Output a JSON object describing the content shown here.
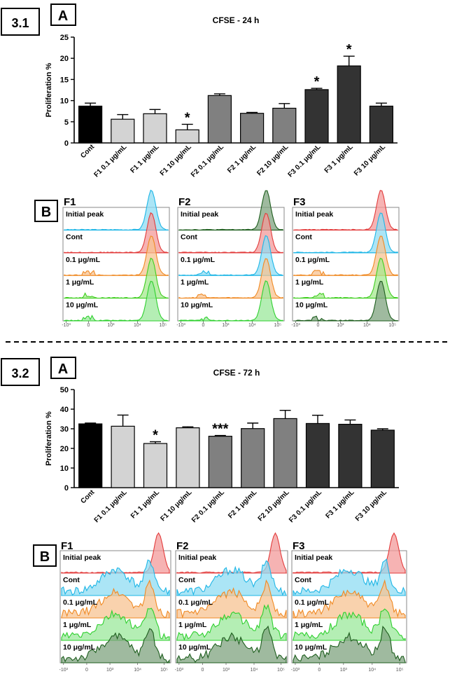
{
  "sections": [
    {
      "badge": "3.1",
      "label_a": "A",
      "label_b": "B"
    },
    {
      "badge": "3.2",
      "label_a": "A",
      "label_b": "B"
    }
  ],
  "colors": {
    "black": "#000000",
    "light": "#d3d3d3",
    "mid": "#808080",
    "dark": "#333333"
  },
  "chart_data": [
    {
      "type": "bar",
      "title": "CFSE - 24 h",
      "ylabel": "Proliferation %",
      "xlabel": "",
      "ylim": [
        0,
        25
      ],
      "yticks": [
        "0",
        "5",
        "10",
        "15",
        "20",
        "25"
      ],
      "categories": [
        "Cont",
        "F1 0.1 μg/mL",
        "F1 1 μg/mL",
        "F1 10 μg/mL",
        "F2 0.1 μg/mL",
        "F2 1 μg/mL",
        "F2 10 μg/mL",
        "F3 0.1 μg/mL",
        "F3 1 μg/mL",
        "F3 10 μg/mL"
      ],
      "values": [
        8.7,
        5.6,
        6.9,
        3.1,
        11.2,
        7.0,
        8.2,
        12.6,
        18.2,
        8.7
      ],
      "errors": [
        0.7,
        1.1,
        1.0,
        1.3,
        0.4,
        0.2,
        1.1,
        0.3,
        2.3,
        0.7
      ],
      "fills": [
        "black",
        "light",
        "light",
        "light",
        "mid",
        "mid",
        "mid",
        "dark",
        "dark",
        "dark"
      ],
      "annotations": [
        "",
        "",
        "",
        "*",
        "",
        "",
        "",
        "*",
        "*",
        ""
      ]
    },
    {
      "type": "bar",
      "title": "CFSE - 72 h",
      "ylabel": "Proliferation %",
      "xlabel": "",
      "ylim": [
        0,
        50
      ],
      "yticks": [
        "0",
        "10",
        "20",
        "30",
        "40",
        "50"
      ],
      "categories": [
        "Cont",
        "F1 0.1 μg/mL",
        "F1 1 μg/mL",
        "F1 10 μg/mL",
        "F2 0.1 μg/mL",
        "F2 1 μg/mL",
        "F2 10 μg/mL",
        "F3 0.1 μg/mL",
        "F3 1 μg/mL",
        "F3 10 μg/mL"
      ],
      "values": [
        32.5,
        31.3,
        22.5,
        30.5,
        26.2,
        30.1,
        35.2,
        32.7,
        32.3,
        29.3
      ],
      "errors": [
        0.4,
        5.7,
        0.9,
        0.5,
        0.4,
        2.8,
        4.2,
        4.2,
        2.2,
        0.7
      ],
      "fills": [
        "black",
        "light",
        "light",
        "light",
        "mid",
        "mid",
        "mid",
        "dark",
        "dark",
        "dark"
      ],
      "annotations": [
        "",
        "",
        "*",
        "",
        "***",
        "",
        "",
        "",
        "",
        ""
      ]
    }
  ],
  "histograms": {
    "section1": {
      "panels": [
        {
          "title": "F1",
          "order": [
            "cyan",
            "red",
            "orange",
            "yellowgreen",
            "green"
          ]
        },
        {
          "title": "F2",
          "order": [
            "darkgreen",
            "red",
            "cyan",
            "orange",
            "green"
          ]
        },
        {
          "title": "F3",
          "order": [
            "red",
            "cyan",
            "orange",
            "yellowgreen",
            "darkgreen"
          ]
        }
      ],
      "row_labels": [
        "Initial peak",
        "Cont",
        "0.1 μg/mL",
        "1 μg/mL",
        "10 μg/mL"
      ],
      "axis_labels": [
        "-10³",
        "0",
        "10³",
        "10⁴",
        "10⁵"
      ],
      "broad": false
    },
    "section2": {
      "panels": [
        {
          "title": "F1",
          "order": [
            "red",
            "cyan",
            "orange",
            "green",
            "darkgreen"
          ]
        },
        {
          "title": "F2",
          "order": [
            "red",
            "cyan",
            "orange",
            "green",
            "darkgreen"
          ]
        },
        {
          "title": "F3",
          "order": [
            "red",
            "cyan",
            "orange",
            "green",
            "darkgreen"
          ]
        }
      ],
      "row_labels": [
        "Initial peak",
        "Cont",
        "0.1 μg/mL",
        "1 μg/mL",
        "10 μg/mL"
      ],
      "axis_labels": [
        "-10³",
        "0",
        "10³",
        "10⁴",
        "10⁵"
      ],
      "broad": true
    }
  },
  "palette": {
    "cyan": {
      "stroke": "#1fb6e6",
      "fill": "#8fdcf3"
    },
    "red": {
      "stroke": "#e23b3b",
      "fill": "#f39a9a"
    },
    "orange": {
      "stroke": "#f08a24",
      "fill": "#f7c391"
    },
    "green": {
      "stroke": "#2fd02f",
      "fill": "#9be89b"
    },
    "yellowgreen": {
      "stroke": "#3fcf1f",
      "fill": "#a5e88f"
    },
    "darkgreen": {
      "stroke": "#1e5e1e",
      "fill": "#7fa37f"
    }
  }
}
